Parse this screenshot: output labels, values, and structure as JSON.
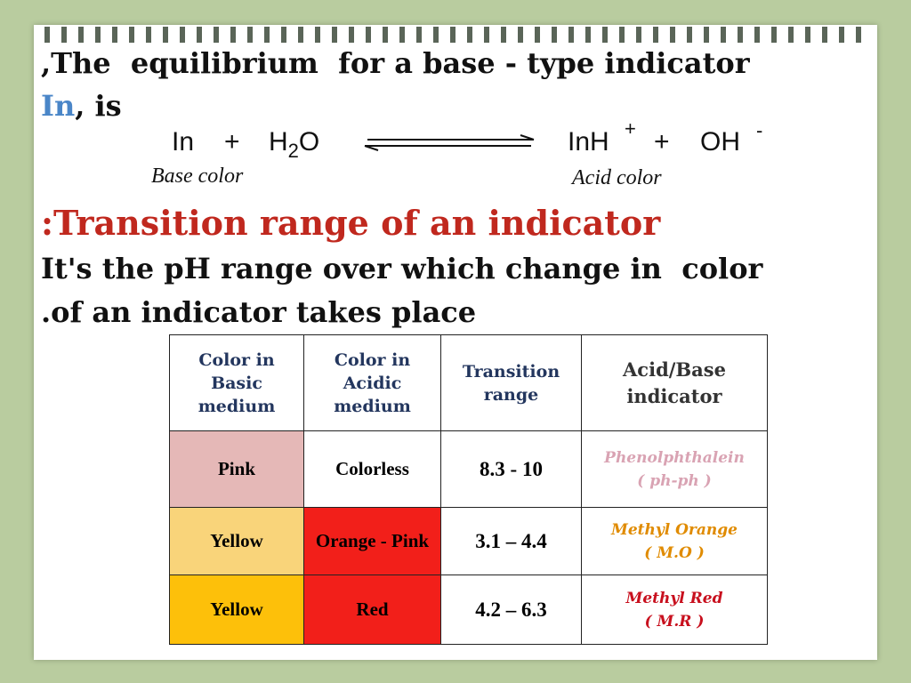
{
  "intro": {
    "line1": ",The  equilibrium  for a base - type indicator",
    "line2_colored": "In",
    "line2_rest": ", is"
  },
  "equation": {
    "reactant1": "In",
    "plus1": "+",
    "water_h": "H",
    "water_sub": "2",
    "water_o": "O",
    "product1": "InH",
    "product1_charge": "+",
    "plus2": "+",
    "product2": "OH",
    "product2_charge": "-",
    "base_label": "Base color",
    "acid_label": "Acid color"
  },
  "heading": ":Transition range of an indicator",
  "definition": [
    "It's the pH range over which change in  color",
    ".of an indicator takes place"
  ],
  "table": {
    "headers": [
      [
        "Color in",
        "Basic",
        "medium"
      ],
      [
        "Color in",
        "Acidic",
        "medium"
      ],
      [
        "Transition",
        "range"
      ],
      [
        "Acid/Base",
        "indicator"
      ]
    ],
    "rows": [
      [
        "Pink",
        "Colorless",
        "8.3 - 10",
        [
          "Phenolphthalein",
          "( ph-ph )"
        ]
      ],
      [
        "Yellow",
        "Orange - Pink",
        "3.1 – 4.4",
        [
          "Methyl Orange",
          "( M.O )"
        ]
      ],
      [
        "Yellow",
        "Red",
        "4.2 – 6.3",
        [
          "Methyl Red",
          "( M.R )"
        ]
      ]
    ]
  }
}
